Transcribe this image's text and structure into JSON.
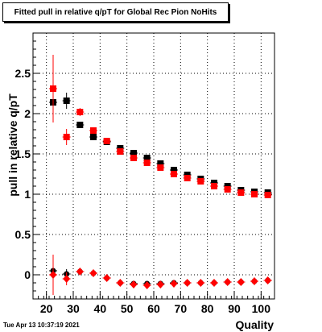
{
  "title": "Fitted pull in relative q/pT for Global Rec Pion NoHits",
  "timestamp": "Tue Apr 13 10:37:19 2021",
  "chart_data": {
    "type": "scatter",
    "title": "Fitted pull in relative q/pT for Global Rec Pion NoHits",
    "xlabel": "Quality",
    "ylabel": "pull in relative q/pT",
    "xlim": [
      15,
      105
    ],
    "ylim": [
      -0.3,
      3.0
    ],
    "xticks": [
      20,
      30,
      40,
      50,
      60,
      70,
      80,
      90,
      100
    ],
    "yticks": [
      0,
      0.5,
      1,
      1.5,
      2,
      2.5
    ],
    "ytick_labels": [
      "0",
      "0.5",
      "1",
      "1.5",
      "2",
      "2.5"
    ],
    "grid": true,
    "series": [
      {
        "color": "#000000",
        "marker": "square",
        "x": [
          22.5,
          27.5,
          32.5,
          37.5,
          42.5,
          47.5,
          52.5,
          57.5,
          62.5,
          67.5,
          72.5,
          77.5,
          82.5,
          87.5,
          92.5,
          97.5,
          102.5
        ],
        "y": [
          2.14,
          2.16,
          1.86,
          1.71,
          1.65,
          1.57,
          1.51,
          1.45,
          1.38,
          1.3,
          1.24,
          1.19,
          1.14,
          1.1,
          1.05,
          1.03,
          1.02
        ],
        "err": [
          0.15,
          0.1,
          0.04,
          0.04,
          0.03,
          0.03,
          0.03,
          0.03,
          0.02,
          0.02,
          0.02,
          0.02,
          0.02,
          0.02,
          0.02,
          0.02,
          0.02
        ]
      },
      {
        "color": "#ff0000",
        "marker": "square",
        "x": [
          22.5,
          27.5,
          32.5,
          37.5,
          42.5,
          47.5,
          52.5,
          57.5,
          62.5,
          67.5,
          72.5,
          77.5,
          82.5,
          87.5,
          92.5,
          97.5,
          102.5
        ],
        "y": [
          2.31,
          1.71,
          2.02,
          1.79,
          1.66,
          1.53,
          1.45,
          1.39,
          1.33,
          1.25,
          1.2,
          1.16,
          1.1,
          1.06,
          1.02,
          1.0,
          0.99
        ],
        "err": [
          0.42,
          0.1,
          0.05,
          0.04,
          0.03,
          0.03,
          0.03,
          0.02,
          0.02,
          0.02,
          0.02,
          0.02,
          0.02,
          0.02,
          0.02,
          0.02,
          0.02
        ]
      },
      {
        "color": "#000000",
        "marker": "circle",
        "x": [
          22.5,
          27.5,
          32.5,
          37.5,
          42.5,
          47.5,
          52.5,
          57.5,
          62.5,
          67.5,
          72.5,
          77.5,
          82.5,
          87.5,
          92.5,
          97.5,
          102.5
        ],
        "y": [
          0.05,
          0.01,
          0.04,
          0.02,
          -0.04,
          -0.1,
          -0.11,
          -0.11,
          -0.11,
          -0.1,
          -0.1,
          -0.1,
          -0.1,
          -0.09,
          -0.09,
          -0.08,
          -0.07
        ],
        "err": [
          0.1,
          0.06,
          0.03,
          0.02,
          0.02,
          0.02,
          0.02,
          0.02,
          0.02,
          0.02,
          0.02,
          0.02,
          0.02,
          0.02,
          0.02,
          0.02,
          0.02
        ]
      },
      {
        "color": "#ff0000",
        "marker": "diamond",
        "x": [
          22.5,
          27.5,
          32.5,
          37.5,
          42.5,
          47.5,
          52.5,
          57.5,
          62.5,
          67.5,
          72.5,
          77.5,
          82.5,
          87.5,
          92.5,
          97.5,
          102.5
        ],
        "y": [
          0.0,
          -0.05,
          0.04,
          0.02,
          -0.04,
          -0.1,
          -0.12,
          -0.13,
          -0.12,
          -0.11,
          -0.1,
          -0.1,
          -0.1,
          -0.09,
          -0.09,
          -0.08,
          -0.07
        ],
        "err": [
          0.25,
          0.08,
          0.03,
          0.02,
          0.02,
          0.02,
          0.02,
          0.02,
          0.02,
          0.02,
          0.02,
          0.02,
          0.02,
          0.02,
          0.02,
          0.02,
          0.02
        ]
      }
    ]
  }
}
